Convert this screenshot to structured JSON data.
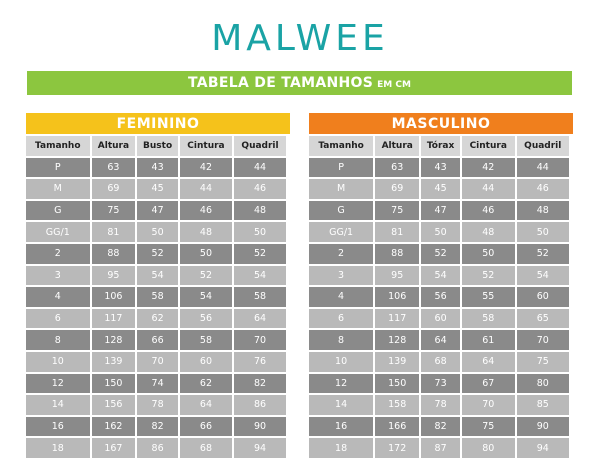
{
  "brand": "MALWEE",
  "banner": {
    "title": "TABELA DE TAMANHOS",
    "unit": "EM CM"
  },
  "feminino": {
    "title": "FEMININO",
    "headers": [
      "Tamanho",
      "Altura",
      "Busto",
      "Cintura",
      "Quadril"
    ],
    "rows": [
      [
        "P",
        "63",
        "43",
        "42",
        "44"
      ],
      [
        "M",
        "69",
        "45",
        "44",
        "46"
      ],
      [
        "G",
        "75",
        "47",
        "46",
        "48"
      ],
      [
        "GG/1",
        "81",
        "50",
        "48",
        "50"
      ],
      [
        "2",
        "88",
        "52",
        "50",
        "52"
      ],
      [
        "3",
        "95",
        "54",
        "52",
        "54"
      ],
      [
        "4",
        "106",
        "58",
        "54",
        "58"
      ],
      [
        "6",
        "117",
        "62",
        "56",
        "64"
      ],
      [
        "8",
        "128",
        "66",
        "58",
        "70"
      ],
      [
        "10",
        "139",
        "70",
        "60",
        "76"
      ],
      [
        "12",
        "150",
        "74",
        "62",
        "82"
      ],
      [
        "14",
        "156",
        "78",
        "64",
        "86"
      ],
      [
        "16",
        "162",
        "82",
        "66",
        "90"
      ],
      [
        "18",
        "167",
        "86",
        "68",
        "94"
      ]
    ]
  },
  "masculino": {
    "title": "MASCULINO",
    "headers": [
      "Tamanho",
      "Altura",
      "Tórax",
      "Cintura",
      "Quadril"
    ],
    "rows": [
      [
        "P",
        "63",
        "43",
        "42",
        "44"
      ],
      [
        "M",
        "69",
        "45",
        "44",
        "46"
      ],
      [
        "G",
        "75",
        "47",
        "46",
        "48"
      ],
      [
        "GG/1",
        "81",
        "50",
        "48",
        "50"
      ],
      [
        "2",
        "88",
        "52",
        "50",
        "52"
      ],
      [
        "3",
        "95",
        "54",
        "52",
        "54"
      ],
      [
        "4",
        "106",
        "56",
        "55",
        "60"
      ],
      [
        "6",
        "117",
        "60",
        "58",
        "65"
      ],
      [
        "8",
        "128",
        "64",
        "61",
        "70"
      ],
      [
        "10",
        "139",
        "68",
        "64",
        "75"
      ],
      [
        "12",
        "150",
        "73",
        "67",
        "80"
      ],
      [
        "14",
        "158",
        "78",
        "70",
        "85"
      ],
      [
        "16",
        "166",
        "82",
        "75",
        "90"
      ],
      [
        "18",
        "172",
        "87",
        "80",
        "94"
      ]
    ]
  },
  "colors": {
    "logo": "#1aa3a5",
    "banner": "#8cc63f",
    "feminino": "#f5c21b",
    "masculino": "#f07f1d",
    "header_cell": "#d6d6d6",
    "row_dark": "#8a8a8a",
    "row_light": "#b9b9b9"
  }
}
